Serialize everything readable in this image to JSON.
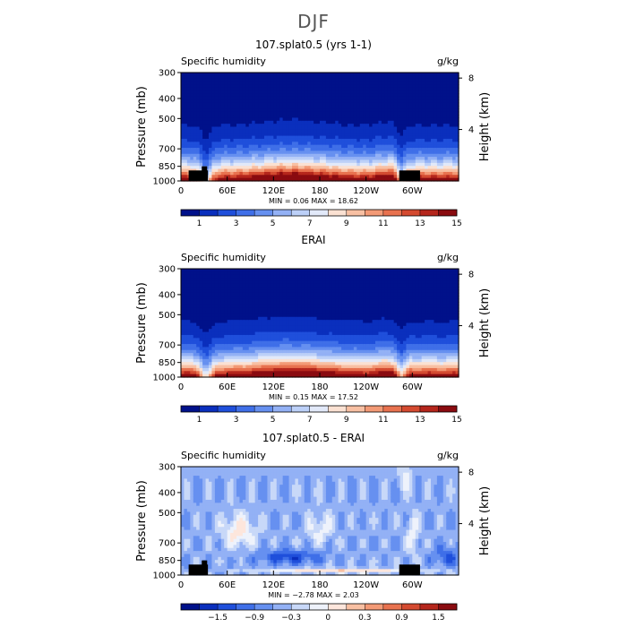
{
  "suptitle": "DJF",
  "colors": {
    "abs_palette": [
      "#00118a",
      "#0a2fbd",
      "#1f4fdb",
      "#3f6fe8",
      "#6690f0",
      "#93b1f5",
      "#bcd0f8",
      "#e2e9f9",
      "#fbe1d2",
      "#f8c0a3",
      "#f39a76",
      "#e8724f",
      "#d44a30",
      "#b5261c",
      "#8a0b10"
    ],
    "diff_palette": [
      "#00118a",
      "#0a2fbd",
      "#1f4fdb",
      "#3f6fe8",
      "#6690f0",
      "#93b1f5",
      "#c8d8f8",
      "#eef2fb",
      "#fde6dc",
      "#f8c0a3",
      "#f39a76",
      "#e8724f",
      "#d44a30",
      "#b5261c",
      "#8a0b10"
    ],
    "topography": "#000000"
  },
  "chart_data": [
    {
      "type": "heatmap",
      "title": "107.splat0.5 (yrs 1-1)",
      "left_label": "Specific humidity",
      "right_label": "g/kg",
      "ylabel": "Pressure (mb)",
      "y2label": "Height (km)",
      "xticks": [
        "0",
        "60E",
        "120E",
        "180",
        "120W",
        "60W"
      ],
      "xtick_lon": [
        0,
        60,
        120,
        180,
        240,
        300
      ],
      "xlim": [
        0,
        360
      ],
      "yticks": [
        "300",
        "400",
        "500",
        "700",
        "850",
        "1000"
      ],
      "ytick_p": [
        300,
        400,
        500,
        700,
        850,
        1000
      ],
      "ylim": [
        300,
        1000
      ],
      "y2ticks": [
        "8",
        "4"
      ],
      "y2tick_km": [
        8,
        4
      ],
      "stats": "MIN =    0.06   MAX =   18.62",
      "colorbar_labels": [
        "1",
        "3",
        "5",
        "7",
        "9",
        "11",
        "13",
        "15"
      ],
      "field": "abs",
      "topography": [
        [
          10,
          35,
          890
        ],
        [
          27,
          34,
          850
        ],
        [
          283,
          310,
          890
        ]
      ]
    },
    {
      "type": "heatmap",
      "title": "ERAI",
      "left_label": "Specific humidity",
      "right_label": "g/kg",
      "ylabel": "Pressure (mb)",
      "y2label": "Height (km)",
      "xticks": [
        "0",
        "60E",
        "120E",
        "180",
        "120W",
        "60W"
      ],
      "xtick_lon": [
        0,
        60,
        120,
        180,
        240,
        300
      ],
      "xlim": [
        0,
        360
      ],
      "yticks": [
        "300",
        "400",
        "500",
        "700",
        "850",
        "1000"
      ],
      "ytick_p": [
        300,
        400,
        500,
        700,
        850,
        1000
      ],
      "ylim": [
        300,
        1000
      ],
      "y2ticks": [
        "8",
        "4"
      ],
      "y2tick_km": [
        8,
        4
      ],
      "stats": "MIN =    0.15   MAX =   17.52",
      "colorbar_labels": [
        "1",
        "3",
        "5",
        "7",
        "9",
        "11",
        "13",
        "15"
      ],
      "field": "abs_era",
      "topography": []
    },
    {
      "type": "heatmap",
      "title": "107.splat0.5 - ERAI",
      "left_label": "Specific humidity",
      "right_label": "g/kg",
      "ylabel": "Pressure (mb)",
      "y2label": "Height (km)",
      "xticks": [
        "0",
        "60E",
        "120E",
        "180",
        "120W",
        "60W"
      ],
      "xtick_lon": [
        0,
        60,
        120,
        180,
        240,
        300
      ],
      "xlim": [
        0,
        360
      ],
      "yticks": [
        "300",
        "400",
        "500",
        "700",
        "850",
        "1000"
      ],
      "ytick_p": [
        300,
        400,
        500,
        700,
        850,
        1000
      ],
      "ylim": [
        300,
        1000
      ],
      "y2ticks": [
        "8",
        "4"
      ],
      "y2tick_km": [
        8,
        4
      ],
      "stats": "MIN =  −2.78   MAX =   2.03",
      "colorbar_labels": [
        "−1.5",
        "−0.9",
        "−0.3",
        "0",
        "0.3",
        "0.9",
        "1.5"
      ],
      "field": "diff",
      "topography": [
        [
          10,
          35,
          890
        ],
        [
          27,
          34,
          850
        ],
        [
          283,
          310,
          890
        ]
      ]
    }
  ]
}
